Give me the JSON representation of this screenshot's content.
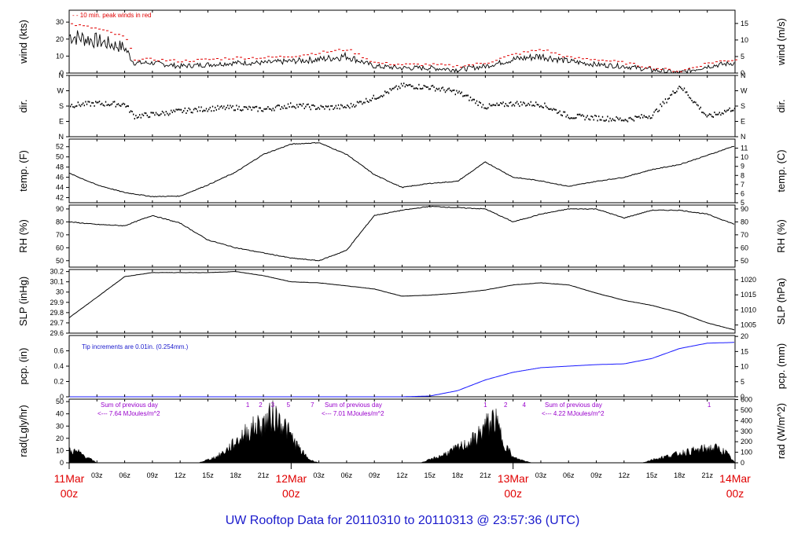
{
  "title": "UW Rooftop Data for 20110310  to  20110313 @ 23:57:36  (UTC)",
  "x_axis": {
    "hour_ticks": [
      "03z",
      "06z",
      "09z",
      "12z",
      "15z",
      "18z",
      "21z",
      "03z",
      "06z",
      "09z",
      "12z",
      "15z",
      "18z",
      "21z",
      "03z",
      "06z",
      "09z",
      "12z",
      "15z",
      "18z",
      "21z"
    ],
    "dates": [
      {
        "day": "11Mar",
        "time": "00z"
      },
      {
        "day": "12Mar",
        "time": "00z"
      },
      {
        "day": "13Mar",
        "time": "00z"
      },
      {
        "day": "14Mar",
        "time": "00z"
      }
    ]
  },
  "colors": {
    "peak": "#e00000",
    "pcp": "#1a1aff",
    "note": "#1a1acc",
    "solar": "#9900cc",
    "date": "#e00000"
  },
  "chart_data": [
    {
      "type": "line",
      "name": "wind",
      "ylabel_left": "wind (kts)",
      "ylabel_right": "wind (m/s)",
      "ylim": [
        0,
        37
      ],
      "yticks": [
        0,
        10,
        20,
        30
      ],
      "right_ylim": [
        0,
        19
      ],
      "right_yticks": [
        0,
        5,
        10,
        15
      ],
      "annotation": "10 min. peak winds in red",
      "x_hours": [
        0,
        3,
        6,
        7,
        9,
        12,
        15,
        18,
        21,
        24,
        27,
        30,
        33,
        36,
        39,
        42,
        45,
        48,
        51,
        54,
        57,
        60,
        63,
        66,
        69,
        72
      ],
      "series": [
        {
          "name": "wind",
          "values": [
            22,
            19,
            15,
            6,
            6,
            4,
            5,
            6,
            6,
            7,
            8,
            10,
            4,
            3,
            3,
            2,
            4,
            8,
            10,
            7,
            5,
            4,
            2,
            0,
            4,
            6
          ]
        },
        {
          "name": "10 min peak",
          "values": [
            29,
            26,
            21,
            8,
            8,
            7,
            8,
            9,
            9,
            10,
            12,
            14,
            6,
            5,
            5,
            4,
            6,
            11,
            14,
            9,
            8,
            6,
            3,
            1,
            6,
            8
          ]
        }
      ]
    },
    {
      "type": "scatter",
      "name": "dir",
      "ylabel_left": "dir.",
      "ylabel_right": "dir.",
      "ylim": [
        0,
        360
      ],
      "yticks": [
        "N",
        "E",
        "S",
        "W",
        "N"
      ],
      "ytick_values": [
        0,
        90,
        180,
        270,
        360
      ],
      "x_hours": [
        0,
        3,
        6,
        7,
        9,
        12,
        15,
        18,
        21,
        24,
        27,
        30,
        33,
        36,
        39,
        42,
        45,
        48,
        51,
        54,
        57,
        60,
        63,
        66,
        69,
        72
      ],
      "values": [
        185,
        195,
        190,
        120,
        130,
        150,
        165,
        170,
        160,
        185,
        170,
        175,
        230,
        300,
        290,
        260,
        175,
        195,
        190,
        120,
        110,
        100,
        125,
        300,
        115,
        170
      ]
    },
    {
      "type": "line",
      "name": "temp",
      "ylabel_left": "temp. (F)",
      "ylabel_right": "temp. (C)",
      "ylim": [
        41,
        53.5
      ],
      "yticks": [
        42,
        44,
        46,
        48,
        50,
        52
      ],
      "right_ylim": [
        5,
        12
      ],
      "right_yticks": [
        5,
        6,
        7,
        8,
        9,
        10,
        11
      ],
      "x_hours": [
        0,
        3,
        6,
        9,
        12,
        15,
        18,
        21,
        24,
        27,
        30,
        33,
        36,
        39,
        42,
        45,
        48,
        51,
        54,
        57,
        60,
        63,
        66,
        69,
        72
      ],
      "values": [
        46.8,
        44.5,
        43,
        42.2,
        42.3,
        44.5,
        47,
        50.5,
        52.5,
        52.8,
        50.5,
        46.5,
        44,
        44.8,
        45.2,
        49,
        46,
        45.3,
        44.2,
        45.2,
        46,
        47.5,
        48.5,
        50.3,
        52.2
      ]
    },
    {
      "type": "line",
      "name": "rh",
      "ylabel_left": "RH (%)",
      "ylabel_right": "RH (%)",
      "ylim": [
        45,
        93
      ],
      "yticks": [
        50,
        60,
        70,
        80,
        90
      ],
      "x_hours": [
        0,
        3,
        6,
        9,
        12,
        15,
        18,
        21,
        24,
        27,
        30,
        33,
        36,
        39,
        42,
        45,
        48,
        51,
        54,
        57,
        60,
        63,
        66,
        69,
        72
      ],
      "values": [
        80,
        78,
        77,
        85,
        79,
        66,
        60,
        56,
        52,
        50,
        58,
        85,
        89,
        92,
        91,
        90,
        80,
        86,
        90,
        90,
        83,
        89,
        89,
        86,
        78
      ]
    },
    {
      "type": "line",
      "name": "slp",
      "ylabel_left": "SLP (inHg)",
      "ylabel_right": "SLP (hPa)",
      "ylim": [
        29.6,
        30.22
      ],
      "yticks": [
        29.6,
        29.7,
        29.8,
        29.9,
        30.0,
        30.1,
        30.2
      ],
      "right_ylim": [
        1002.3,
        1023.4
      ],
      "right_yticks": [
        1005,
        1010,
        1015,
        1020
      ],
      "x_hours": [
        0,
        3,
        6,
        9,
        12,
        15,
        18,
        21,
        24,
        27,
        30,
        33,
        36,
        39,
        42,
        45,
        48,
        51,
        54,
        57,
        60,
        63,
        66,
        69,
        72
      ],
      "values": [
        29.75,
        29.95,
        30.15,
        30.19,
        30.19,
        30.19,
        30.2,
        30.16,
        30.1,
        30.09,
        30.06,
        30.03,
        29.96,
        29.97,
        29.99,
        30.02,
        30.07,
        30.09,
        30.07,
        29.99,
        29.92,
        29.87,
        29.8,
        29.7,
        29.63
      ]
    },
    {
      "type": "line",
      "name": "pcp",
      "ylabel_left": "pcp. (in)",
      "ylabel_right": "pcp. (mm)",
      "ylim": [
        0,
        0.8
      ],
      "yticks": [
        0.0,
        0.2,
        0.4,
        0.6
      ],
      "right_ylim": [
        0,
        20.3
      ],
      "right_yticks": [
        0,
        5,
        10,
        15,
        20
      ],
      "annotation": "Tip increments are 0.01in. (0.254mm.)",
      "x_hours": [
        0,
        36,
        39,
        42,
        45,
        48,
        51,
        54,
        57,
        60,
        63,
        66,
        69,
        72
      ],
      "values": [
        0,
        0,
        0.01,
        0.08,
        0.22,
        0.32,
        0.38,
        0.4,
        0.42,
        0.43,
        0.5,
        0.63,
        0.7,
        0.71
      ]
    },
    {
      "type": "area",
      "name": "rad",
      "ylabel_left": "rad(Lgly/hr)",
      "ylabel_right": "rad (W/m^2)",
      "ylim": [
        0,
        52
      ],
      "yticks": [
        0,
        10,
        20,
        30,
        40,
        50
      ],
      "right_ylim": [
        0,
        604
      ],
      "right_yticks": [
        0,
        100,
        200,
        300,
        400,
        500,
        600
      ],
      "x_hours": [
        0,
        1,
        2,
        3,
        14,
        15,
        16,
        17,
        18,
        19,
        20,
        21,
        22,
        23,
        24,
        25,
        26,
        27,
        38,
        39,
        40,
        41,
        42,
        43,
        44,
        45,
        46,
        47,
        48,
        50,
        62,
        63,
        64,
        65,
        66,
        67,
        68,
        69,
        70,
        71,
        72
      ],
      "values": [
        12,
        10,
        5,
        0,
        0,
        3,
        6,
        12,
        20,
        28,
        34,
        38,
        45,
        40,
        25,
        12,
        3,
        0,
        0,
        3,
        6,
        10,
        14,
        18,
        24,
        35,
        42,
        20,
        5,
        0,
        0,
        3,
        5,
        7,
        9,
        11,
        12,
        14,
        14,
        10,
        0
      ],
      "annotations": [
        {
          "text": "Sum of previous day",
          "value": "<--- 7.64 MJoules/m^2"
        },
        {
          "text": "Sum of previous day",
          "value": "<--- 7.01 MJoules/m^2"
        },
        {
          "text": "Sum of previous day",
          "value": "<--- 4.22 MJoules/m^2"
        }
      ],
      "markers": [
        {
          "label": "1",
          "x_hour": 19.3
        },
        {
          "label": "2",
          "x_hour": 20.7
        },
        {
          "label": "3",
          "x_hour": 22.0
        },
        {
          "label": "5",
          "x_hour": 23.7
        },
        {
          "label": "7",
          "x_hour": 26.3
        },
        {
          "label": "1",
          "x_hour": 45.0
        },
        {
          "label": "2",
          "x_hour": 47.2
        },
        {
          "label": "4",
          "x_hour": 49.2
        },
        {
          "label": "1",
          "x_hour": 69.2
        }
      ]
    }
  ]
}
